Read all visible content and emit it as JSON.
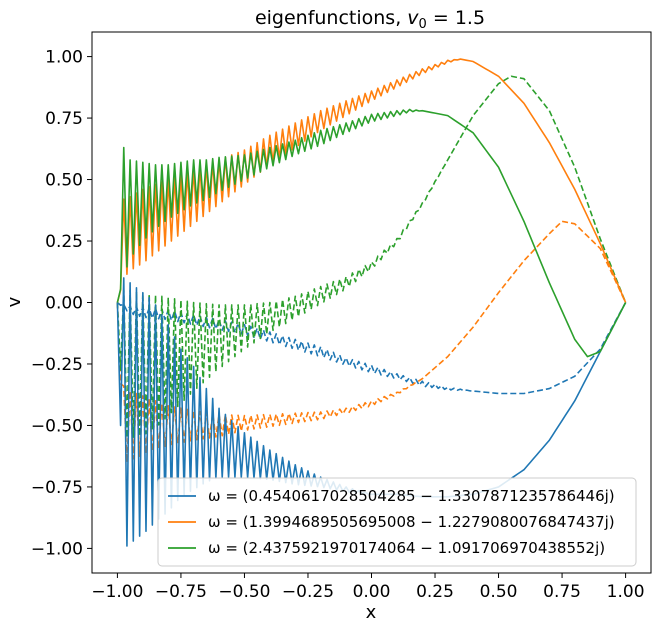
{
  "chart_data": {
    "type": "line",
    "title": "eigenfunctions, ",
    "title_math_base": "v",
    "title_math_sub": "0",
    "title_math_tail": " = 1.5",
    "xlabel": "x",
    "ylabel": "v",
    "xlim": [
      -1.1,
      1.1
    ],
    "ylim": [
      -1.1,
      1.1
    ],
    "xticks": [
      -1.0,
      -0.75,
      -0.5,
      -0.25,
      0.0,
      0.25,
      0.5,
      0.75,
      1.0
    ],
    "xtick_labels": [
      "−1.00",
      "−0.75",
      "−0.50",
      "−0.25",
      "0.00",
      "0.25",
      "0.50",
      "0.75",
      "1.00"
    ],
    "yticks": [
      1.0,
      0.75,
      0.5,
      0.25,
      0.0,
      -0.25,
      -0.5,
      -0.75,
      -1.0
    ],
    "ytick_labels": [
      "1.00",
      "0.75",
      "0.50",
      "0.25",
      "0.00",
      "−0.25",
      "−0.50",
      "−0.75",
      "−1.00"
    ],
    "legend_position": "lower-right",
    "series": [
      {
        "name": "ω = (0.4540617028504285 − 1.3307871235786446j)",
        "color": "#1f77b4",
        "line_style": "solid",
        "x": [
          -1.0,
          -0.975,
          -0.95,
          -0.925,
          -0.9,
          -0.875,
          -0.85,
          -0.825,
          -0.8,
          -0.775,
          -0.75,
          -0.7,
          -0.65,
          -0.6,
          -0.5,
          -0.4,
          -0.3,
          -0.2,
          -0.1,
          0.0,
          0.1,
          0.2,
          0.3,
          0.4,
          0.5,
          0.6,
          0.7,
          0.8,
          0.9,
          1.0
        ],
        "mean": [
          0.0,
          -0.45,
          -0.45,
          -0.45,
          -0.45,
          -0.45,
          -0.45,
          -0.46,
          -0.47,
          -0.48,
          -0.49,
          -0.51,
          -0.54,
          -0.57,
          -0.62,
          -0.66,
          -0.7,
          -0.73,
          -0.76,
          -0.78,
          -0.78,
          -0.79,
          -0.79,
          -0.78,
          -0.75,
          -0.68,
          -0.56,
          -0.4,
          -0.2,
          0.0
        ],
        "amp": [
          0.0,
          0.55,
          0.53,
          0.51,
          0.49,
          0.47,
          0.44,
          0.41,
          0.38,
          0.34,
          0.3,
          0.25,
          0.19,
          0.14,
          0.09,
          0.06,
          0.04,
          0.02,
          0.01,
          0.0,
          0.0,
          0.0,
          0.0,
          0.0,
          0.0,
          0.0,
          0.0,
          0.0,
          0.0,
          0.0
        ]
      },
      {
        "name": "ω = (1.3994689505695008 − 1.2279080076847437j)",
        "color": "#ff7f0e",
        "line_style": "solid",
        "x": [
          -1.0,
          -0.975,
          -0.95,
          -0.9,
          -0.85,
          -0.8,
          -0.75,
          -0.7,
          -0.65,
          -0.6,
          -0.5,
          -0.4,
          -0.3,
          -0.2,
          -0.1,
          0.0,
          0.1,
          0.2,
          0.3,
          0.35,
          0.4,
          0.5,
          0.6,
          0.7,
          0.8,
          0.9,
          1.0
        ],
        "mean": [
          0.0,
          0.26,
          0.28,
          0.31,
          0.34,
          0.37,
          0.4,
          0.43,
          0.46,
          0.49,
          0.55,
          0.62,
          0.68,
          0.74,
          0.79,
          0.84,
          0.89,
          0.94,
          0.98,
          0.99,
          0.98,
          0.92,
          0.81,
          0.65,
          0.46,
          0.24,
          0.0
        ],
        "amp": [
          0.0,
          0.16,
          0.15,
          0.15,
          0.14,
          0.13,
          0.12,
          0.11,
          0.1,
          0.09,
          0.07,
          0.06,
          0.05,
          0.04,
          0.03,
          0.02,
          0.015,
          0.01,
          0.005,
          0.0,
          0.0,
          0.0,
          0.0,
          0.0,
          0.0,
          0.0,
          0.0
        ]
      },
      {
        "name": "ω = (2.4375921970174064 − 1.091706970438552j)",
        "color": "#2ca02c",
        "line_style": "solid",
        "x": [
          -1.0,
          -0.975,
          -0.95,
          -0.9,
          -0.85,
          -0.8,
          -0.75,
          -0.7,
          -0.65,
          -0.6,
          -0.5,
          -0.4,
          -0.3,
          -0.2,
          -0.1,
          0.0,
          0.1,
          0.15,
          0.2,
          0.3,
          0.4,
          0.5,
          0.6,
          0.7,
          0.8,
          0.85,
          0.9,
          1.0
        ],
        "mean": [
          0.0,
          0.37,
          0.38,
          0.41,
          0.43,
          0.45,
          0.47,
          0.49,
          0.5,
          0.52,
          0.55,
          0.59,
          0.63,
          0.67,
          0.71,
          0.75,
          0.77,
          0.78,
          0.78,
          0.76,
          0.69,
          0.55,
          0.33,
          0.08,
          -0.15,
          -0.22,
          -0.2,
          0.0
        ],
        "amp": [
          0.0,
          0.26,
          0.2,
          0.16,
          0.13,
          0.11,
          0.1,
          0.09,
          0.08,
          0.07,
          0.05,
          0.04,
          0.03,
          0.03,
          0.02,
          0.015,
          0.01,
          0.005,
          0.0,
          0.0,
          0.0,
          0.0,
          0.0,
          0.0,
          0.0,
          0.0,
          0.0,
          0.0
        ]
      },
      {
        "name": "blue dashed",
        "color": "#1f77b4",
        "line_style": "dashed",
        "in_legend": false,
        "x": [
          -1.0,
          -0.95,
          -0.9,
          -0.8,
          -0.7,
          -0.6,
          -0.5,
          -0.4,
          -0.3,
          -0.2,
          -0.1,
          0.0,
          0.1,
          0.2,
          0.3,
          0.4,
          0.5,
          0.6,
          0.7,
          0.8,
          0.9,
          1.0
        ],
        "mean": [
          0.0,
          -0.03,
          -0.04,
          -0.05,
          -0.07,
          -0.09,
          -0.11,
          -0.14,
          -0.17,
          -0.2,
          -0.24,
          -0.27,
          -0.3,
          -0.33,
          -0.35,
          -0.36,
          -0.37,
          -0.37,
          -0.35,
          -0.3,
          -0.19,
          0.0
        ],
        "amp": [
          0.0,
          0.015,
          0.02,
          0.02,
          0.02,
          0.02,
          0.02,
          0.02,
          0.02,
          0.02,
          0.015,
          0.015,
          0.01,
          0.01,
          0.005,
          0.0,
          0.0,
          0.0,
          0.0,
          0.0,
          0.0,
          0.0
        ]
      },
      {
        "name": "orange dashed",
        "color": "#ff7f0e",
        "line_style": "dashed",
        "in_legend": false,
        "x": [
          -1.0,
          -0.975,
          -0.95,
          -0.9,
          -0.85,
          -0.8,
          -0.75,
          -0.7,
          -0.6,
          -0.5,
          -0.4,
          -0.3,
          -0.2,
          -0.1,
          0.0,
          0.1,
          0.2,
          0.3,
          0.4,
          0.5,
          0.6,
          0.7,
          0.75,
          0.8,
          0.9,
          1.0
        ],
        "mean": [
          0.0,
          -0.5,
          -0.5,
          -0.5,
          -0.5,
          -0.5,
          -0.5,
          -0.5,
          -0.5,
          -0.49,
          -0.48,
          -0.47,
          -0.46,
          -0.44,
          -0.41,
          -0.37,
          -0.31,
          -0.22,
          -0.1,
          0.04,
          0.17,
          0.28,
          0.33,
          0.32,
          0.22,
          0.0
        ],
        "amp": [
          0.0,
          0.16,
          0.14,
          0.12,
          0.1,
          0.08,
          0.07,
          0.06,
          0.045,
          0.03,
          0.025,
          0.02,
          0.015,
          0.01,
          0.01,
          0.005,
          0.0,
          0.0,
          0.0,
          0.0,
          0.0,
          0.0,
          0.0,
          0.0,
          0.0,
          0.0
        ]
      },
      {
        "name": "green dashed",
        "color": "#2ca02c",
        "line_style": "dashed",
        "in_legend": false,
        "x": [
          -1.0,
          -0.975,
          -0.95,
          -0.9,
          -0.85,
          -0.8,
          -0.75,
          -0.7,
          -0.6,
          -0.5,
          -0.4,
          -0.3,
          -0.2,
          -0.1,
          0.0,
          0.1,
          0.2,
          0.3,
          0.4,
          0.5,
          0.55,
          0.6,
          0.7,
          0.8,
          0.9,
          1.0
        ],
        "mean": [
          0.0,
          -0.25,
          -0.25,
          -0.25,
          -0.24,
          -0.22,
          -0.2,
          -0.18,
          -0.14,
          -0.1,
          -0.06,
          -0.02,
          0.03,
          0.08,
          0.15,
          0.25,
          0.4,
          0.58,
          0.76,
          0.89,
          0.92,
          0.91,
          0.78,
          0.55,
          0.26,
          0.0
        ],
        "amp": [
          0.0,
          0.3,
          0.3,
          0.29,
          0.27,
          0.24,
          0.21,
          0.18,
          0.13,
          0.09,
          0.06,
          0.045,
          0.035,
          0.025,
          0.015,
          0.01,
          0.005,
          0.0,
          0.0,
          0.0,
          0.0,
          0.0,
          0.0,
          0.0,
          0.0,
          0.0
        ]
      }
    ]
  }
}
